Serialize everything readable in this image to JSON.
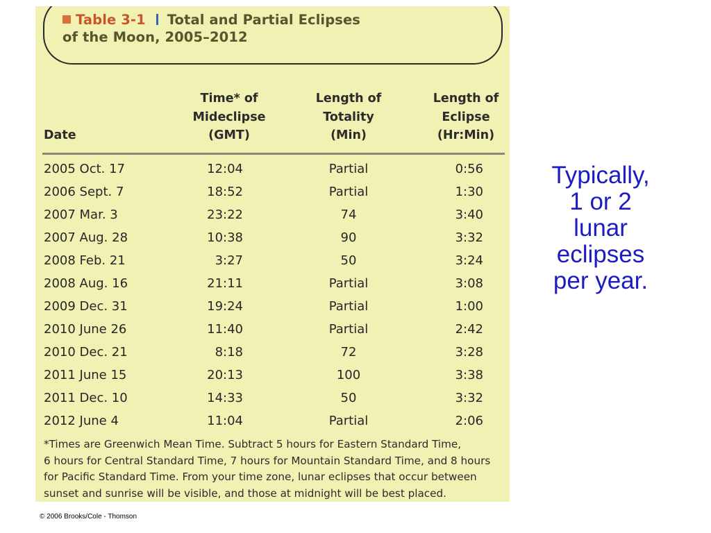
{
  "table": {
    "number": "Table 3-1",
    "title_line1": "Total and Partial Eclipses",
    "title_line2": "of the Moon, 2005–2012",
    "headers": {
      "date": "Date",
      "time": [
        "Time* of",
        "Mideclipse",
        "(GMT)"
      ],
      "totality": [
        "Length of",
        "Totality",
        "(Min)"
      ],
      "eclipse": [
        "Length of",
        "Eclipse",
        "(Hr:Min)"
      ]
    },
    "rows": [
      {
        "date": "2005 Oct. 17",
        "time": "12:04",
        "totality": "Partial",
        "eclipse": "0:56"
      },
      {
        "date": "2006 Sept. 7",
        "time": "18:52",
        "totality": "Partial",
        "eclipse": "1:30"
      },
      {
        "date": "2007 Mar. 3",
        "time": "23:22",
        "totality": "74",
        "eclipse": "3:40"
      },
      {
        "date": "2007 Aug. 28",
        "time": "10:38",
        "totality": "90",
        "eclipse": "3:32"
      },
      {
        "date": "2008 Feb. 21",
        "time": "3:27",
        "totality": "50",
        "eclipse": "3:24"
      },
      {
        "date": "2008 Aug. 16",
        "time": "21:11",
        "totality": "Partial",
        "eclipse": "3:08"
      },
      {
        "date": "2009 Dec. 31",
        "time": "19:24",
        "totality": "Partial",
        "eclipse": "1:00"
      },
      {
        "date": "2010 June 26",
        "time": "11:40",
        "totality": "Partial",
        "eclipse": "2:42"
      },
      {
        "date": "2010 Dec. 21",
        "time": "8:18",
        "totality": "72",
        "eclipse": "3:28"
      },
      {
        "date": "2011 June 15",
        "time": "20:13",
        "totality": "100",
        "eclipse": "3:38"
      },
      {
        "date": "2011 Dec. 10",
        "time": "14:33",
        "totality": "50",
        "eclipse": "3:32"
      },
      {
        "date": "2012 June 4",
        "time": "11:04",
        "totality": "Partial",
        "eclipse": "2:06"
      }
    ],
    "footnote": [
      "*Times are Greenwich Mean Time. Subtract 5 hours for Eastern Standard Time,",
      "6 hours for Central Standard Time, 7 hours for Mountain Standard Time, and 8 hours",
      "for Pacific Standard Time. From your time zone, lunar eclipses that occur between",
      "sunset and sunrise will be visible, and those at midnight will be best placed."
    ]
  },
  "copyright": "© 2006 Brooks/Cole - Thomson",
  "side_note": [
    "Typically,",
    "1 or 2",
    "lunar",
    "eclipses",
    "per year."
  ],
  "colors": {
    "panel_background": "#f2f1b4",
    "title_text": "#57542e",
    "table_number": "#c8542a",
    "title_square": "#d8703e",
    "title_separator": "#3c5fb0",
    "side_note_text": "#1c1cc4"
  }
}
